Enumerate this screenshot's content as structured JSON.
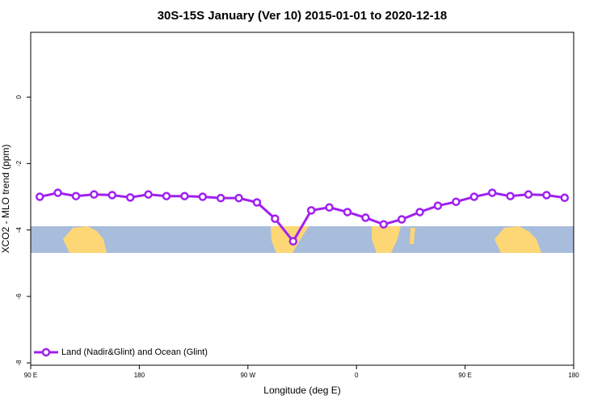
{
  "chart_data": {
    "type": "line",
    "title": "30S-15S January (Ver 10)   2015-01-01 to 2020-12-18",
    "xlabel": "Longitude (deg E)",
    "ylabel": "XCO2 - MLO trend (ppm)",
    "xlim": [
      90,
      540
    ],
    "xticks": [
      {
        "value": 90,
        "label": "90 E"
      },
      {
        "value": 180,
        "label": "180"
      },
      {
        "value": 270,
        "label": "90 W"
      },
      {
        "value": 360,
        "label": "0"
      },
      {
        "value": 450,
        "label": "90 E"
      },
      {
        "value": 540,
        "label": "180"
      }
    ],
    "ylim": [
      -8.07,
      1.95
    ],
    "yticks": [
      0,
      -2,
      -4,
      -6,
      -8
    ],
    "x": [
      97.5,
      112.5,
      127.5,
      142.5,
      157.5,
      172.5,
      187.5,
      202.5,
      217.5,
      232.5,
      247.5,
      262.5,
      277.5,
      292.5,
      307.5,
      322.5,
      337.5,
      352.5,
      367.5,
      382.5,
      397.5,
      412.5,
      427.5,
      442.5,
      457.5,
      472.5,
      487.5,
      502.5,
      517.5,
      532.5
    ],
    "series": [
      {
        "name": "Land (Nadir&Glint) and Ocean (Glint)",
        "color": "#a020f0",
        "values": [
          -3.0,
          -2.88,
          -2.98,
          -2.93,
          -2.95,
          -3.02,
          -2.93,
          -2.98,
          -2.98,
          -3.0,
          -3.04,
          -3.04,
          -3.17,
          -3.66,
          -4.34,
          -3.41,
          -3.32,
          -3.46,
          -3.63,
          -3.83,
          -3.68,
          -3.46,
          -3.27,
          -3.15,
          -3.0,
          -2.88,
          -2.98,
          -2.93,
          -2.95,
          -3.03
        ]
      }
    ],
    "legend": "bottom-left"
  }
}
